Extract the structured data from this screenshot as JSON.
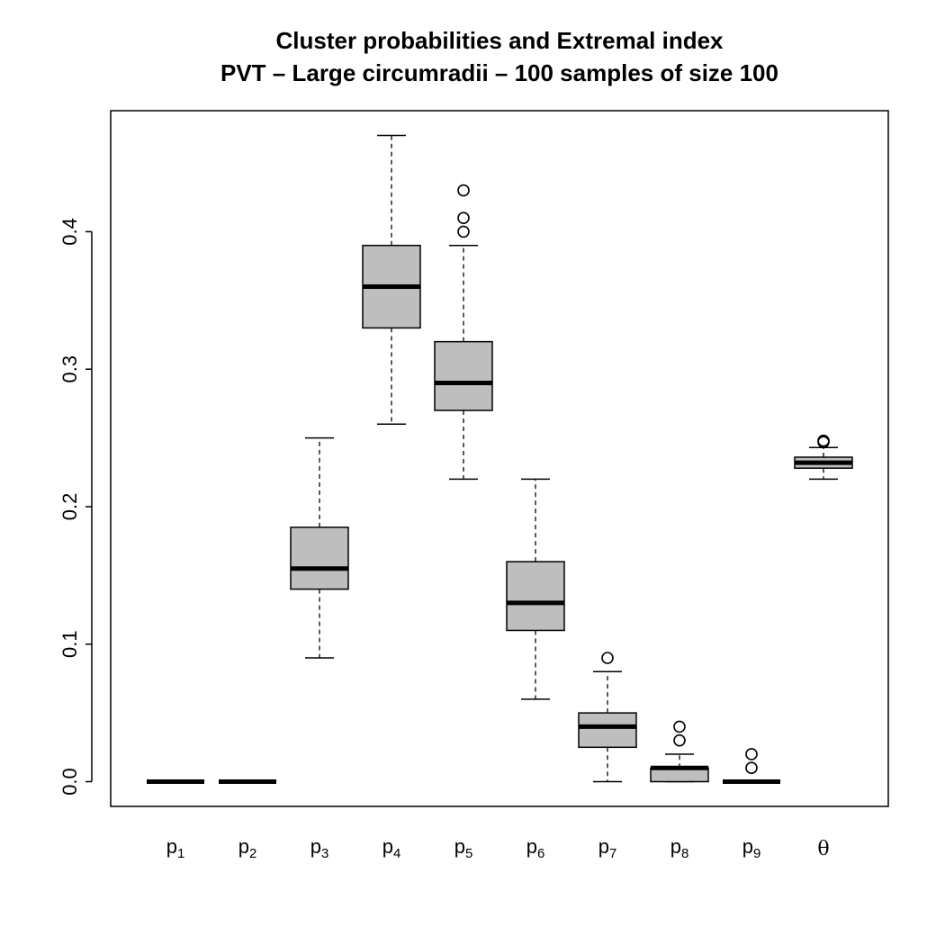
{
  "chart_data": {
    "type": "boxplot",
    "title": [
      "Cluster probabilities and Extremal index",
      "PVT – Large circumradii – 100 samples of size 100"
    ],
    "xlabel": "",
    "ylabel": "",
    "ylim": [
      -0.018,
      0.488
    ],
    "yticks": [
      0.0,
      0.1,
      0.2,
      0.3,
      0.4
    ],
    "ytick_labels": [
      "0.0",
      "0.1",
      "0.2",
      "0.3",
      "0.4"
    ],
    "box_fill": "#bebebe",
    "categories": [
      {
        "base": "p",
        "sub": "1"
      },
      {
        "base": "p",
        "sub": "2"
      },
      {
        "base": "p",
        "sub": "3"
      },
      {
        "base": "p",
        "sub": "4"
      },
      {
        "base": "p",
        "sub": "5"
      },
      {
        "base": "p",
        "sub": "6"
      },
      {
        "base": "p",
        "sub": "7"
      },
      {
        "base": "p",
        "sub": "8"
      },
      {
        "base": "p",
        "sub": "9"
      },
      {
        "base": "θ",
        "sub": ""
      }
    ],
    "boxes": [
      {
        "whisker_low": 0.0,
        "q1": 0.0,
        "median": 0.0,
        "q3": 0.0,
        "whisker_high": 0.0,
        "outliers": []
      },
      {
        "whisker_low": 0.0,
        "q1": 0.0,
        "median": 0.0,
        "q3": 0.0,
        "whisker_high": 0.0,
        "outliers": []
      },
      {
        "whisker_low": 0.09,
        "q1": 0.14,
        "median": 0.155,
        "q3": 0.185,
        "whisker_high": 0.25,
        "outliers": []
      },
      {
        "whisker_low": 0.26,
        "q1": 0.33,
        "median": 0.36,
        "q3": 0.39,
        "whisker_high": 0.47,
        "outliers": []
      },
      {
        "whisker_low": 0.22,
        "q1": 0.27,
        "median": 0.29,
        "q3": 0.32,
        "whisker_high": 0.39,
        "outliers": [
          0.4,
          0.41,
          0.43
        ]
      },
      {
        "whisker_low": 0.06,
        "q1": 0.11,
        "median": 0.13,
        "q3": 0.16,
        "whisker_high": 0.22,
        "outliers": []
      },
      {
        "whisker_low": 0.0,
        "q1": 0.025,
        "median": 0.04,
        "q3": 0.05,
        "whisker_high": 0.08,
        "outliers": [
          0.09
        ]
      },
      {
        "whisker_low": 0.0,
        "q1": 0.0,
        "median": 0.01,
        "q3": 0.01,
        "whisker_high": 0.02,
        "outliers": [
          0.03,
          0.04
        ]
      },
      {
        "whisker_low": 0.0,
        "q1": 0.0,
        "median": 0.0,
        "q3": 0.0,
        "whisker_high": 0.0,
        "outliers": [
          0.01,
          0.02
        ]
      },
      {
        "whisker_low": 0.22,
        "q1": 0.228,
        "median": 0.232,
        "q3": 0.236,
        "whisker_high": 0.243,
        "outliers": [
          0.247,
          0.248
        ]
      }
    ]
  }
}
